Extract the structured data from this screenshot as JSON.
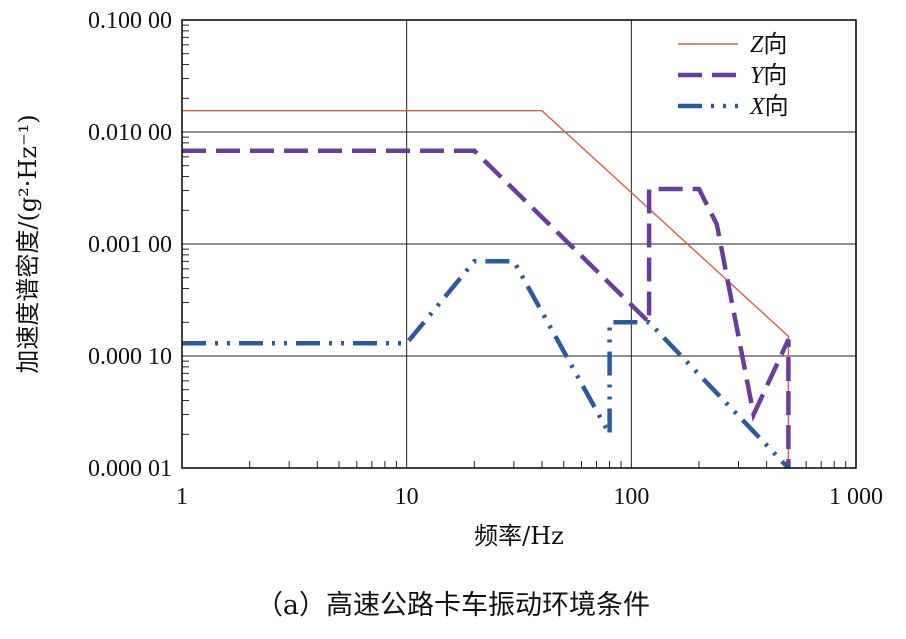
{
  "caption": "（a）高速公路卡车振动环境条件",
  "chart_data": {
    "type": "line",
    "title": "",
    "xlabel": "频率/Hz",
    "ylabel": "加速度谱密度/(g²·Hz⁻¹)",
    "xscale": "log",
    "yscale": "log",
    "xlim": [
      1,
      1000
    ],
    "ylim": [
      1e-05,
      0.1
    ],
    "x_ticks": [
      {
        "value": 1,
        "label": "1"
      },
      {
        "value": 10,
        "label": "10"
      },
      {
        "value": 100,
        "label": "100"
      },
      {
        "value": 1000,
        "label": "1 000"
      }
    ],
    "y_ticks": [
      {
        "value": 0.1,
        "label": "0.100 00"
      },
      {
        "value": 0.01,
        "label": "0.010 00"
      },
      {
        "value": 0.001,
        "label": "0.001 00"
      },
      {
        "value": 0.0001,
        "label": "0.000 10"
      },
      {
        "value": 1e-05,
        "label": "0.000 01"
      }
    ],
    "grid": true,
    "legend_position": "top-right",
    "series": [
      {
        "name": "Z向",
        "axis_letter": "Z",
        "suffix": "向",
        "color": "#d9603b",
        "style": "solid",
        "points": [
          [
            1,
            0.0155
          ],
          [
            40,
            0.0155
          ],
          [
            500,
            0.00015
          ],
          [
            500,
            1e-05
          ]
        ]
      },
      {
        "name": "Y向",
        "axis_letter": "Y",
        "suffix": "向",
        "color": "#6a3d9a",
        "style": "dash",
        "points": [
          [
            1,
            0.0068
          ],
          [
            20,
            0.0068
          ],
          [
            120,
            0.0002
          ],
          [
            120,
            0.0031
          ],
          [
            200,
            0.0031
          ],
          [
            240,
            0.0015
          ],
          [
            350,
            3e-05
          ],
          [
            500,
            0.00014
          ],
          [
            500,
            1e-05
          ]
        ]
      },
      {
        "name": "X向",
        "axis_letter": "X",
        "suffix": "向",
        "color": "#2c59a0",
        "style": "dashdotdot",
        "points": [
          [
            1,
            0.00013
          ],
          [
            10,
            0.00013
          ],
          [
            20,
            0.0007
          ],
          [
            30,
            0.0007
          ],
          [
            80,
            2e-05
          ],
          [
            80,
            0.0002
          ],
          [
            120,
            0.0002
          ],
          [
            500,
            1e-05
          ]
        ]
      }
    ]
  }
}
